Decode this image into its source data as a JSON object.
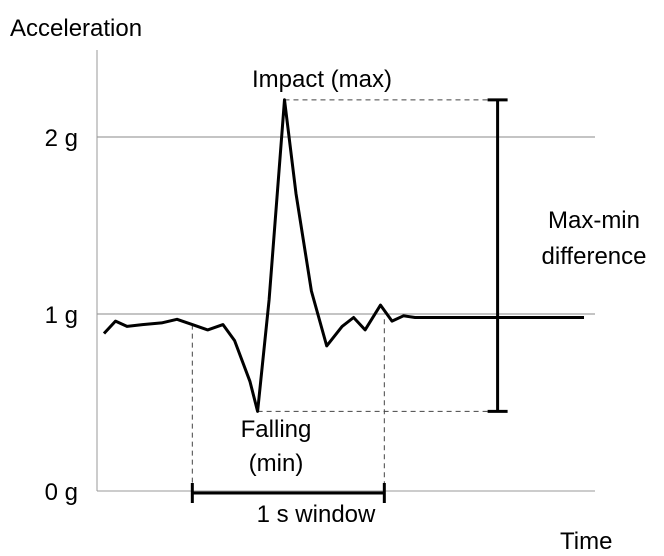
{
  "chart_data": {
    "type": "line",
    "title": "",
    "xlabel": "Time",
    "ylabel": "Acceleration",
    "ylim": [
      0,
      2.4
    ],
    "ytick_values": [
      0,
      1,
      2
    ],
    "ytick_labels": [
      "0 g",
      "1 g",
      "2 g"
    ],
    "grid": true,
    "series": [
      {
        "x": [
          0,
          0.06,
          0.12,
          0.2,
          0.3,
          0.38,
          0.46,
          0.54,
          0.62,
          0.68,
          0.76,
          0.8,
          0.86,
          0.94,
          1.0,
          1.08,
          1.16,
          1.24,
          1.3,
          1.36,
          1.44,
          1.5,
          1.56,
          1.62,
          1.7,
          1.8,
          1.9,
          2.0,
          2.1,
          2.3,
          2.5
        ],
        "values": [
          0.89,
          0.96,
          0.93,
          0.94,
          0.95,
          0.97,
          0.94,
          0.91,
          0.94,
          0.85,
          0.62,
          0.45,
          1.08,
          2.21,
          1.68,
          1.13,
          0.82,
          0.93,
          0.98,
          0.91,
          1.05,
          0.96,
          0.99,
          0.98,
          0.98,
          0.98,
          0.98,
          0.98,
          0.98,
          0.98,
          0.98
        ]
      }
    ],
    "annotations": {
      "max_label": "Impact (max)",
      "min_label_line1": "Falling",
      "min_label_line2": "(min)",
      "diff_label_line1": "Max-min",
      "diff_label_line2": "difference",
      "window_label": "1 s window",
      "max_point": {
        "x": 0.94,
        "y": 2.21
      },
      "min_point": {
        "x": 0.8,
        "y": 0.45
      },
      "window": {
        "start": 0.46,
        "end": 1.46
      },
      "diff_bar_x": 2.05
    },
    "colors": {
      "line": "#000000",
      "grid": "#888888",
      "axis": "#999999",
      "dashed": "#444444",
      "text": "#000000"
    }
  }
}
